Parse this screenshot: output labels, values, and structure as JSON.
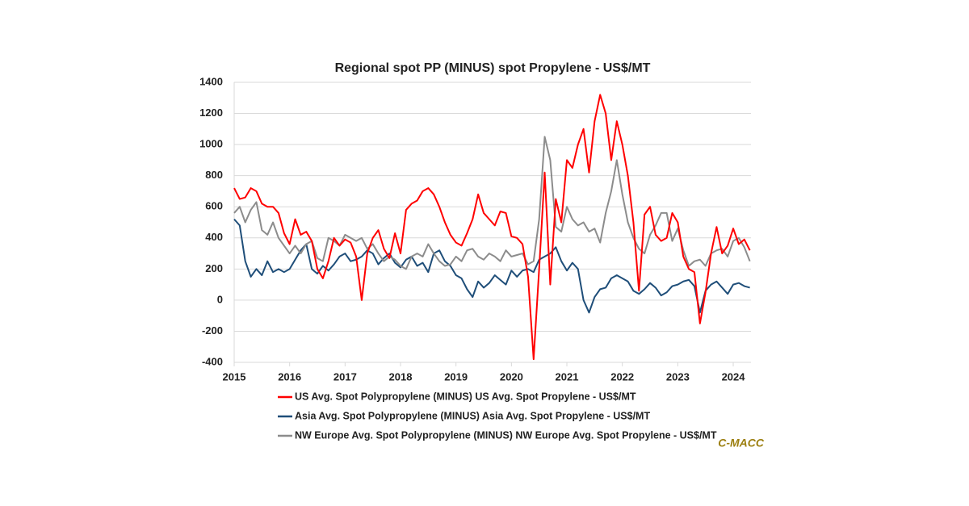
{
  "chart_data": {
    "type": "line",
    "title": "Regional spot PP (MINUS) spot Propylene - US$/MT",
    "brand": "C-MACC",
    "xlim": [
      2015,
      2024.32
    ],
    "xticks": [
      2015,
      2016,
      2017,
      2018,
      2019,
      2020,
      2021,
      2022,
      2023,
      2024
    ],
    "ylim": [
      -400,
      1400
    ],
    "yticks": [
      -400,
      -200,
      0,
      200,
      400,
      600,
      800,
      1000,
      1200,
      1400
    ],
    "grid": true,
    "x": [
      2015,
      2015.1,
      2015.2,
      2015.3,
      2015.4,
      2015.5,
      2015.6,
      2015.7,
      2015.8,
      2015.9,
      2016,
      2016.1,
      2016.2,
      2016.3,
      2016.4,
      2016.5,
      2016.6,
      2016.7,
      2016.8,
      2016.9,
      2017,
      2017.1,
      2017.2,
      2017.3,
      2017.4,
      2017.5,
      2017.6,
      2017.7,
      2017.8,
      2017.9,
      2018,
      2018.1,
      2018.2,
      2018.3,
      2018.4,
      2018.5,
      2018.6,
      2018.7,
      2018.8,
      2018.9,
      2019,
      2019.1,
      2019.2,
      2019.3,
      2019.4,
      2019.5,
      2019.6,
      2019.7,
      2019.8,
      2019.9,
      2020,
      2020.1,
      2020.2,
      2020.3,
      2020.4,
      2020.5,
      2020.6,
      2020.7,
      2020.8,
      2020.9,
      2021,
      2021.1,
      2021.2,
      2021.3,
      2021.4,
      2021.5,
      2021.6,
      2021.7,
      2021.8,
      2021.9,
      2022,
      2022.1,
      2022.2,
      2022.3,
      2022.4,
      2022.5,
      2022.6,
      2022.7,
      2022.8,
      2022.9,
      2023,
      2023.1,
      2023.2,
      2023.3,
      2023.4,
      2023.5,
      2023.6,
      2023.7,
      2023.8,
      2023.9,
      2024,
      2024.1,
      2024.2,
      2024.3
    ],
    "series": [
      {
        "name": "US Avg. Spot Polypropylene (MINUS) US Avg. Spot Propylene - US$/MT",
        "color": "#ff0000",
        "values": [
          720,
          650,
          660,
          720,
          700,
          620,
          600,
          600,
          560,
          430,
          360,
          520,
          420,
          440,
          380,
          200,
          140,
          250,
          400,
          350,
          390,
          370,
          280,
          0,
          300,
          400,
          450,
          330,
          270,
          430,
          300,
          580,
          620,
          640,
          700,
          720,
          680,
          600,
          500,
          420,
          370,
          350,
          430,
          520,
          680,
          560,
          520,
          480,
          570,
          560,
          410,
          400,
          360,
          150,
          -380,
          200,
          820,
          100,
          650,
          500,
          900,
          850,
          1000,
          1100,
          820,
          1150,
          1320,
          1200,
          900,
          1150,
          1000,
          800,
          500,
          60,
          550,
          600,
          420,
          380,
          400,
          560,
          500,
          280,
          200,
          180,
          -150,
          50,
          300,
          470,
          300,
          350,
          460,
          360,
          390,
          320
        ]
      },
      {
        "name": "Asia Avg. Spot Polypropylene (MINUS) Asia Avg. Spot Propylene - US$/MT",
        "color": "#1f4e79",
        "values": [
          520,
          480,
          250,
          150,
          200,
          160,
          250,
          180,
          200,
          180,
          200,
          260,
          320,
          360,
          200,
          170,
          220,
          190,
          230,
          280,
          300,
          250,
          260,
          280,
          320,
          300,
          230,
          270,
          300,
          240,
          210,
          260,
          280,
          220,
          240,
          180,
          300,
          320,
          250,
          220,
          160,
          140,
          70,
          20,
          120,
          80,
          110,
          160,
          130,
          100,
          190,
          150,
          190,
          200,
          180,
          260,
          280,
          300,
          340,
          250,
          190,
          240,
          200,
          0,
          -80,
          20,
          70,
          80,
          140,
          160,
          140,
          120,
          60,
          40,
          70,
          110,
          80,
          30,
          50,
          90,
          100,
          120,
          130,
          90,
          -80,
          60,
          100,
          120,
          80,
          40,
          100,
          110,
          90,
          80
        ]
      },
      {
        "name": "NW Europe Avg. Spot Polypropylene (MINUS) NW Europe Avg. Spot Propylene - US$/MT",
        "color": "#8c8c8c",
        "values": [
          560,
          600,
          500,
          580,
          630,
          450,
          420,
          500,
          400,
          350,
          300,
          350,
          300,
          360,
          380,
          270,
          250,
          400,
          380,
          350,
          420,
          400,
          380,
          400,
          330,
          360,
          300,
          250,
          280,
          260,
          220,
          200,
          280,
          300,
          280,
          360,
          300,
          250,
          220,
          230,
          280,
          250,
          320,
          330,
          280,
          260,
          300,
          280,
          250,
          320,
          280,
          290,
          300,
          230,
          250,
          520,
          1050,
          900,
          470,
          440,
          600,
          520,
          480,
          500,
          440,
          460,
          370,
          560,
          700,
          900,
          680,
          500,
          400,
          330,
          300,
          420,
          480,
          560,
          560,
          380,
          460,
          320,
          220,
          250,
          260,
          220,
          300,
          320,
          330,
          280,
          380,
          400,
          340,
          250
        ]
      }
    ]
  }
}
